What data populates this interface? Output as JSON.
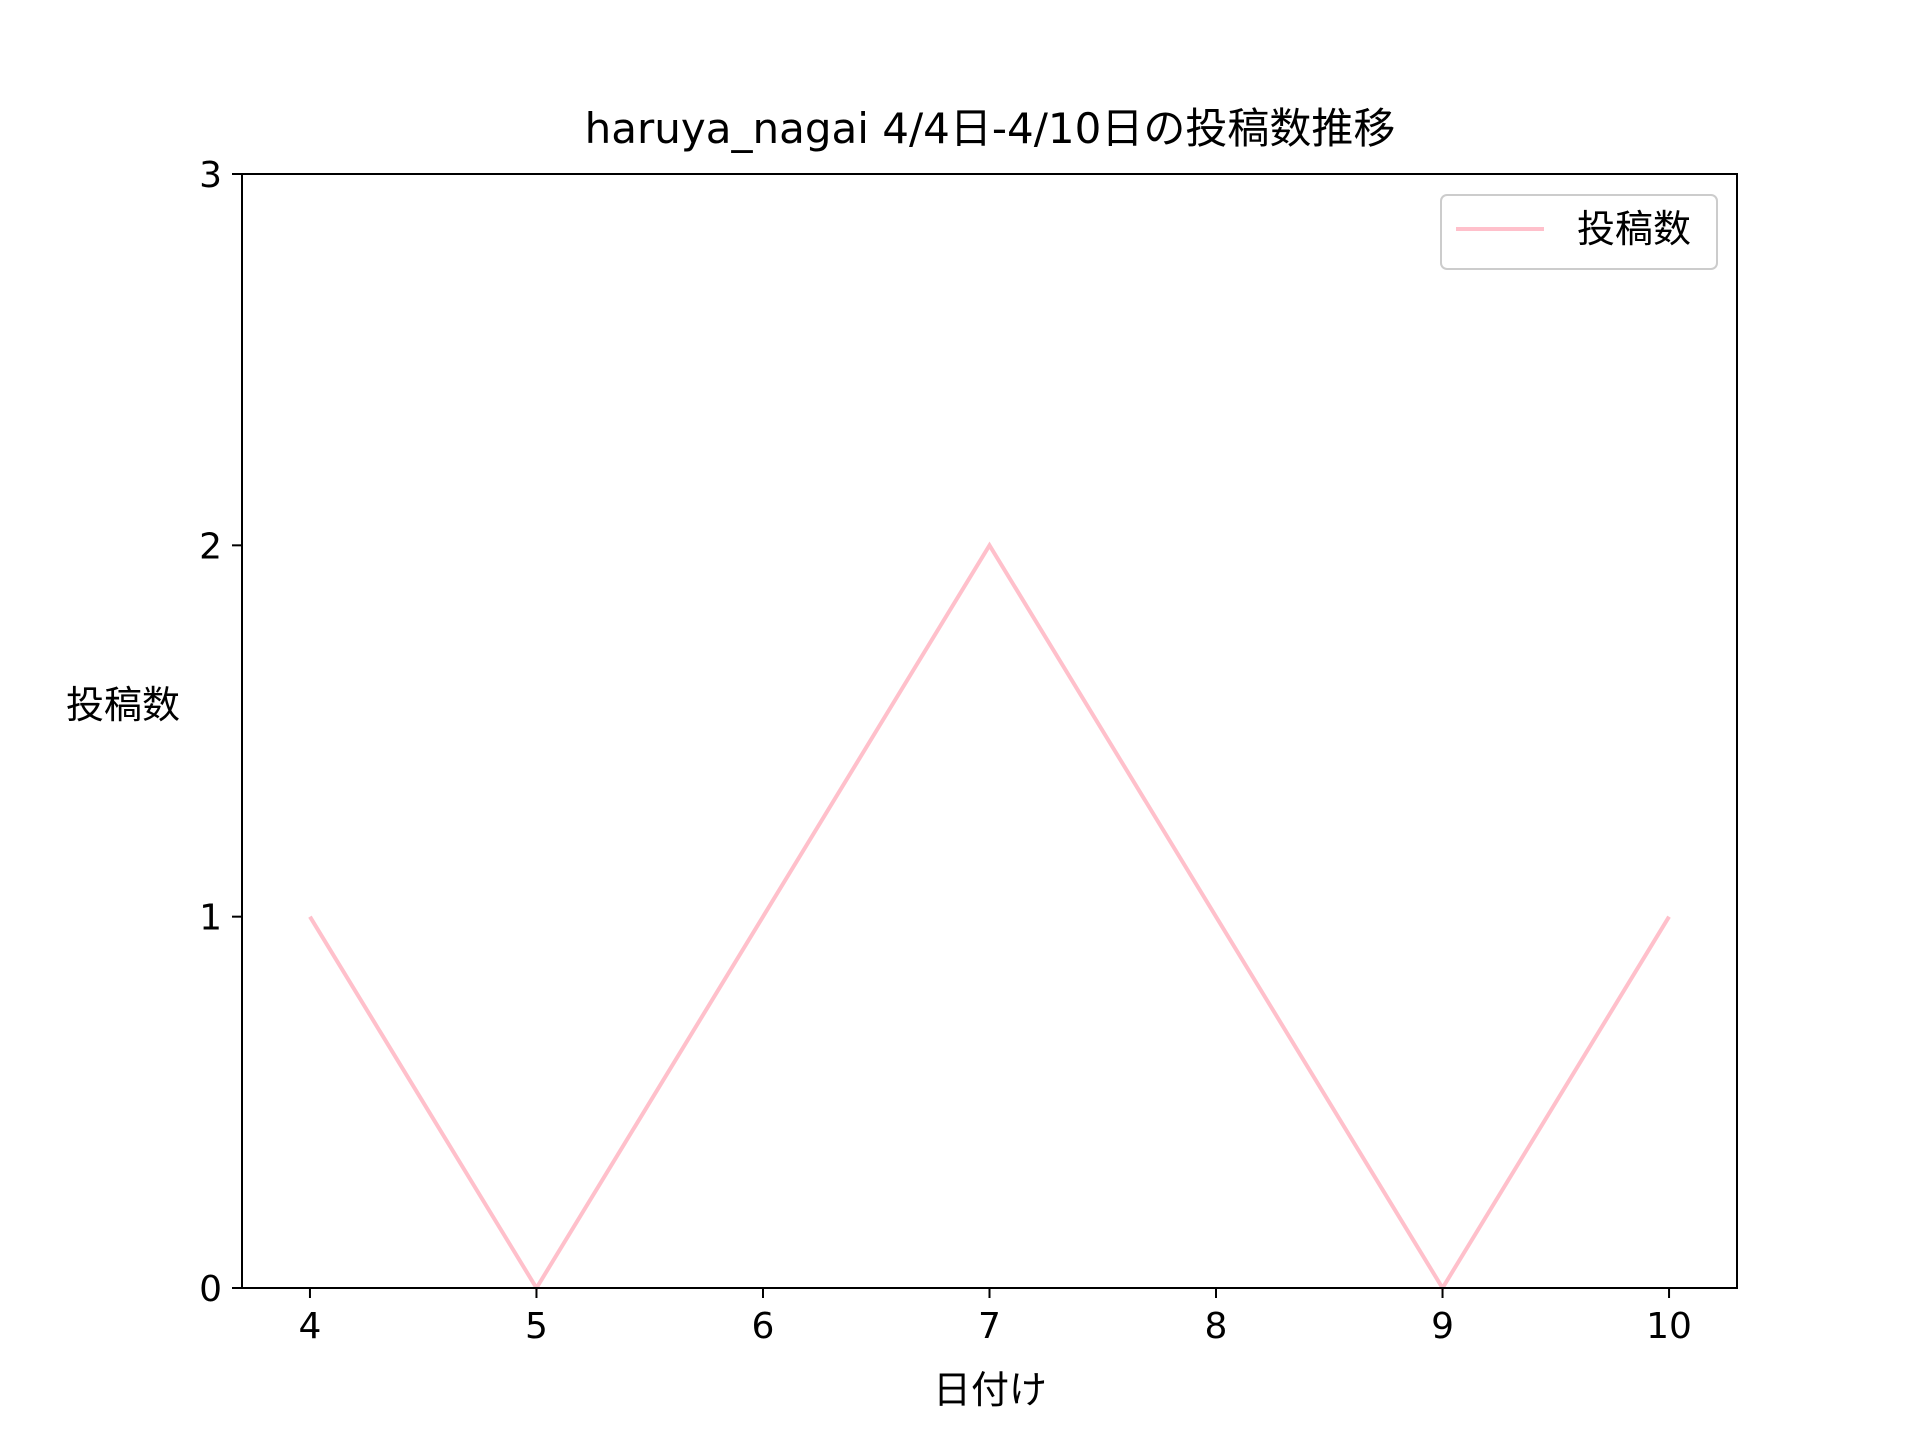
{
  "chart_data": {
    "type": "line",
    "title": "haruya_nagai 4/4日-4/10日の投稿数推移",
    "xlabel": "日付け",
    "ylabel": "投稿数",
    "x": [
      4,
      5,
      6,
      7,
      8,
      9,
      10
    ],
    "xticks": [
      "4",
      "5",
      "6",
      "7",
      "8",
      "9",
      "10"
    ],
    "yticks": [
      "0",
      "1",
      "2",
      "3"
    ],
    "ylim": [
      0,
      3
    ],
    "xlim": [
      3.7,
      10.3
    ],
    "series": [
      {
        "name": "投稿数",
        "values": [
          1,
          0,
          1,
          2,
          1,
          0,
          1
        ],
        "color": "#ffc0cb"
      }
    ],
    "legend": {
      "position": "top-right",
      "entries": [
        "投稿数"
      ]
    },
    "grid": false
  }
}
